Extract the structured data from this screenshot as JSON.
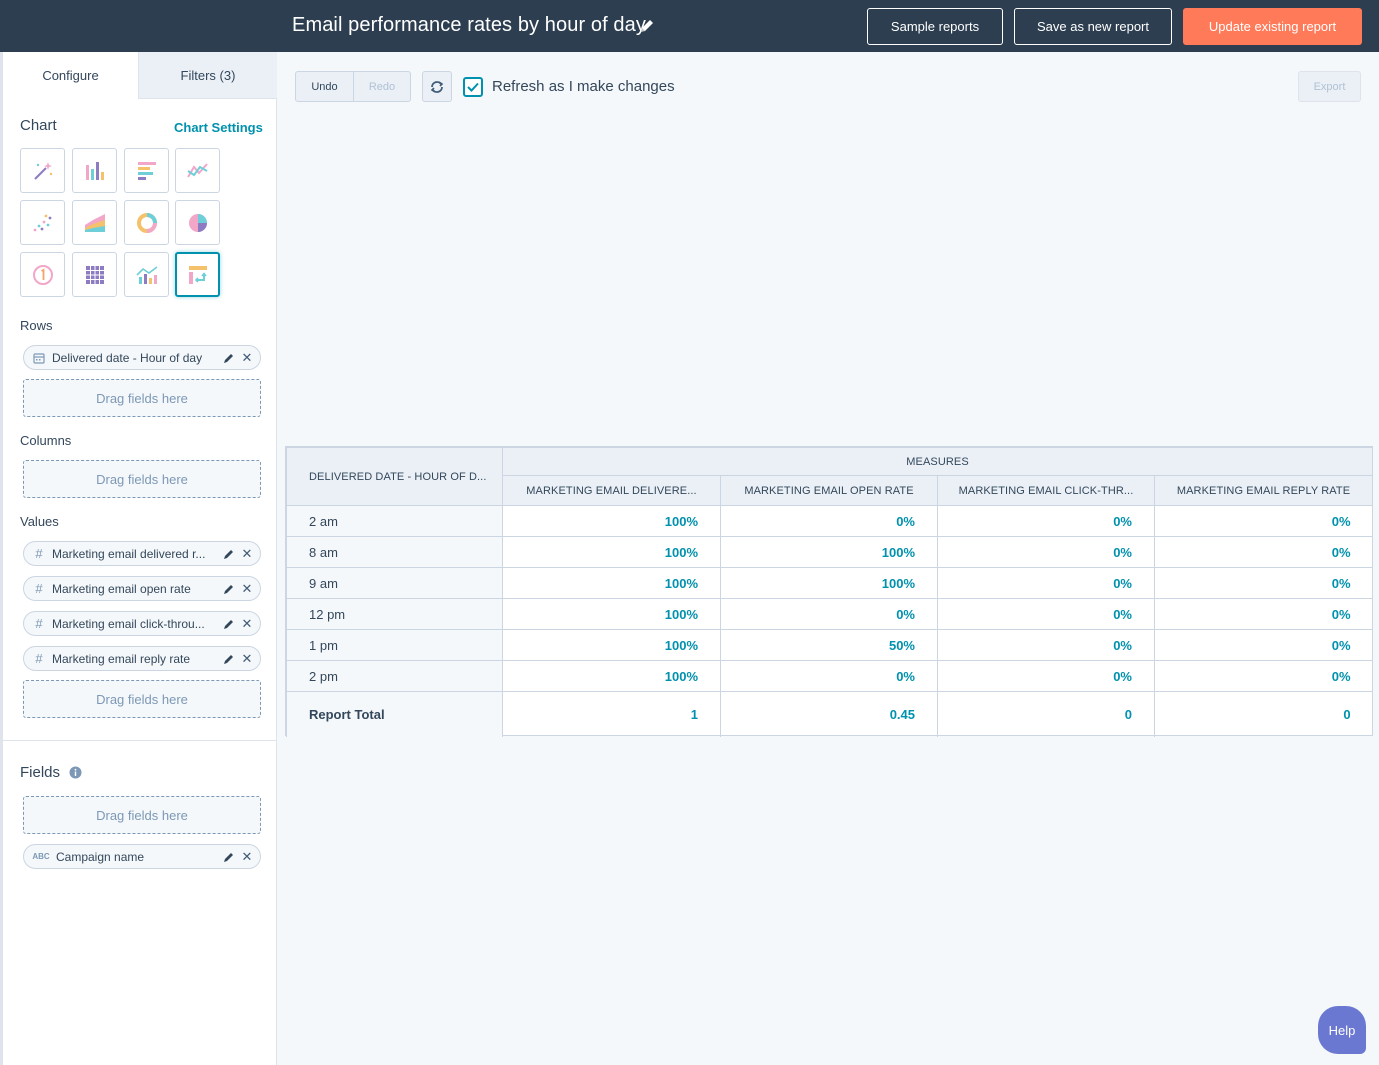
{
  "header": {
    "title": "Email performance rates by hour of day",
    "sample_reports": "Sample reports",
    "save_new": "Save as new report",
    "update_existing": "Update existing report"
  },
  "sidebar": {
    "tabs": [
      "Configure",
      "Filters (3)"
    ],
    "chart_title": "Chart",
    "chart_settings": "Chart Settings",
    "chart_types": [
      "magic-wand-icon",
      "vertical-bar-icon",
      "horizontal-bar-icon",
      "line-icon",
      "scatter-icon",
      "area-icon",
      "donut-icon",
      "pie-icon",
      "kpi-icon",
      "heatmap-icon",
      "combo-icon",
      "pivot-table-icon"
    ],
    "rows_title": "Rows",
    "rows": [
      {
        "label": "Delivered date - Hour of day",
        "icon": "calendar-icon"
      }
    ],
    "columns_title": "Columns",
    "values_title": "Values",
    "values": [
      {
        "label": "Marketing email delivered r...",
        "icon": "hash-icon"
      },
      {
        "label": "Marketing email open rate",
        "icon": "hash-icon"
      },
      {
        "label": "Marketing email click-throu...",
        "icon": "hash-icon"
      },
      {
        "label": "Marketing email reply rate",
        "icon": "hash-icon"
      }
    ],
    "drop_label": "Drag fields here",
    "fields_title": "Fields",
    "fields": [
      {
        "label": "Campaign name",
        "icon": "text-abc-icon"
      }
    ]
  },
  "toolbar": {
    "undo": "Undo",
    "redo": "Redo",
    "refresh_label": "Refresh as I make changes",
    "export": "Export"
  },
  "table": {
    "row_header": "Delivered date - Hour of d...",
    "group_header": "Measures",
    "columns": [
      "Marketing email delivere...",
      "Marketing email open rate",
      "Marketing email click-thr...",
      "Marketing email reply rate"
    ],
    "rows": [
      {
        "label": "2 am",
        "values": [
          "100%",
          "0%",
          "0%",
          "0%"
        ]
      },
      {
        "label": "8 am",
        "values": [
          "100%",
          "100%",
          "0%",
          "0%"
        ]
      },
      {
        "label": "9 am",
        "values": [
          "100%",
          "100%",
          "0%",
          "0%"
        ]
      },
      {
        "label": "12 pm",
        "values": [
          "100%",
          "0%",
          "0%",
          "0%"
        ]
      },
      {
        "label": "1 pm",
        "values": [
          "100%",
          "50%",
          "0%",
          "0%"
        ]
      },
      {
        "label": "2 pm",
        "values": [
          "100%",
          "0%",
          "0%",
          "0%"
        ]
      }
    ],
    "total": {
      "label": "Report Total",
      "values": [
        "1",
        "0.45",
        "0",
        "0"
      ]
    }
  },
  "help": "Help",
  "colors": {
    "header_bg": "#2d3e50",
    "accent": "#0091ae",
    "primary_button": "#ff7a59",
    "help_button": "#6a78d1"
  }
}
